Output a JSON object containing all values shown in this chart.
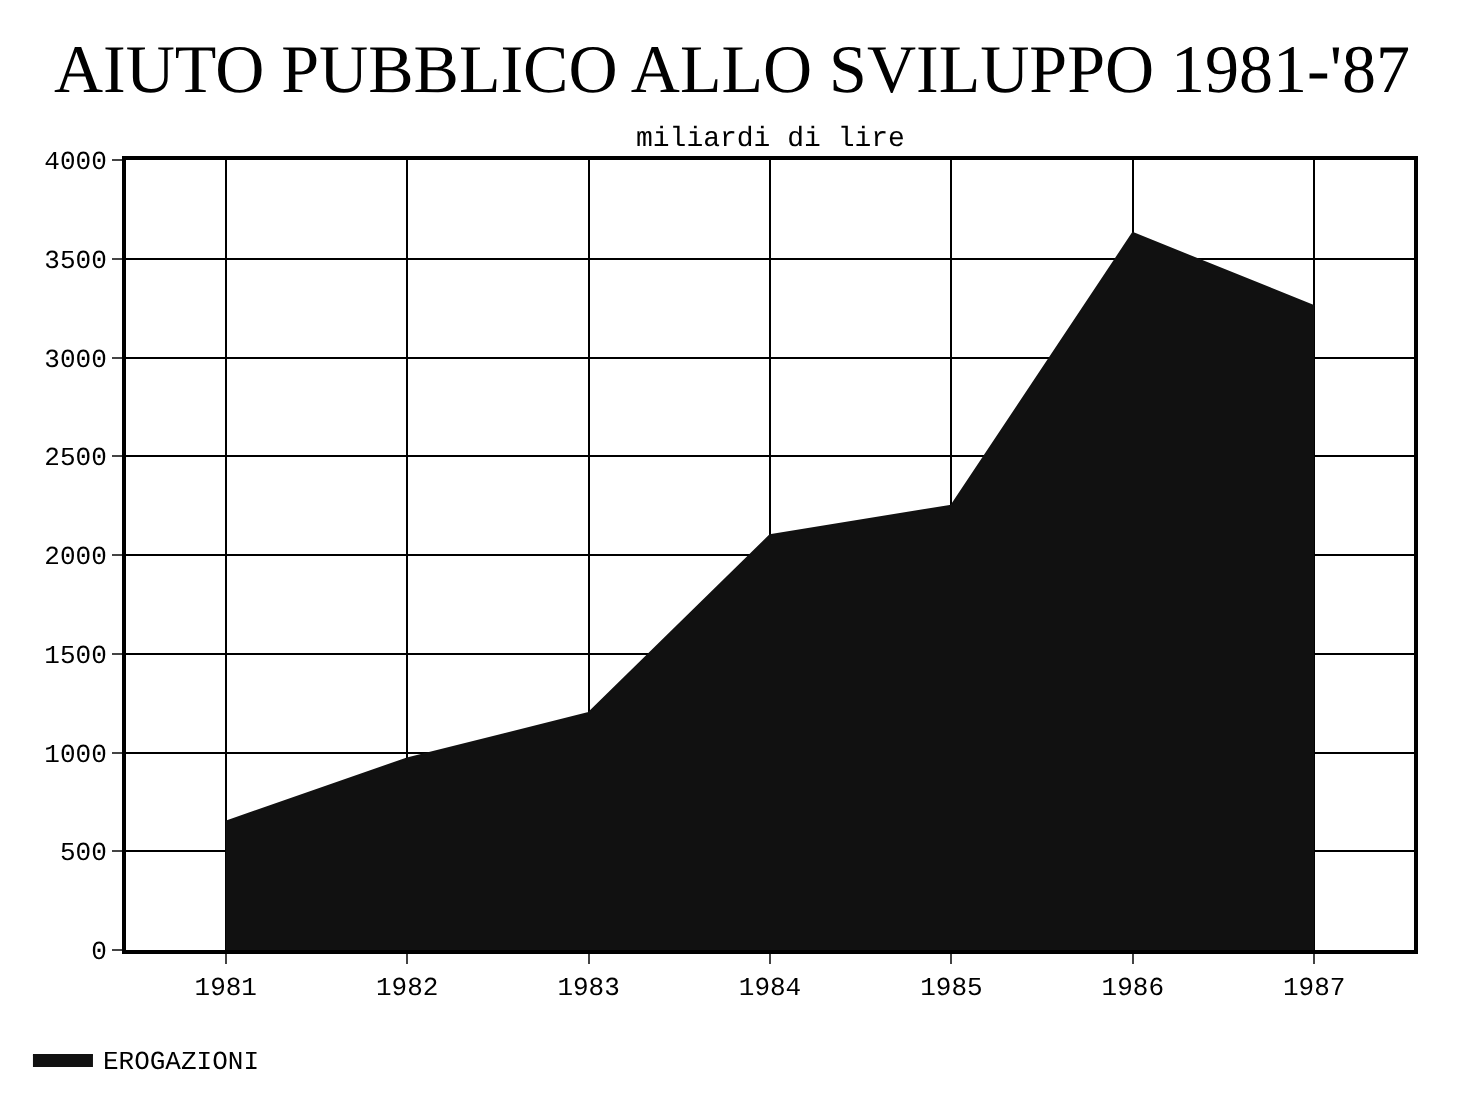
{
  "chart_data": {
    "type": "area",
    "title": "AIUTO PUBBLICO ALLO SVILUPPO 1981-'87",
    "subtitle": "miliardi di lire",
    "categories": [
      "1981",
      "1982",
      "1983",
      "1984",
      "1985",
      "1986",
      "1987"
    ],
    "series": [
      {
        "name": "EROGAZIONI",
        "color": "#111111",
        "values": [
          650,
          970,
          1200,
          2100,
          2250,
          3630,
          3260
        ]
      }
    ],
    "ylim": [
      0,
      4000
    ],
    "yticks": [
      0,
      500,
      1000,
      1500,
      2000,
      2500,
      3000,
      3500,
      4000
    ],
    "grid": true,
    "legend": "bottom left"
  }
}
